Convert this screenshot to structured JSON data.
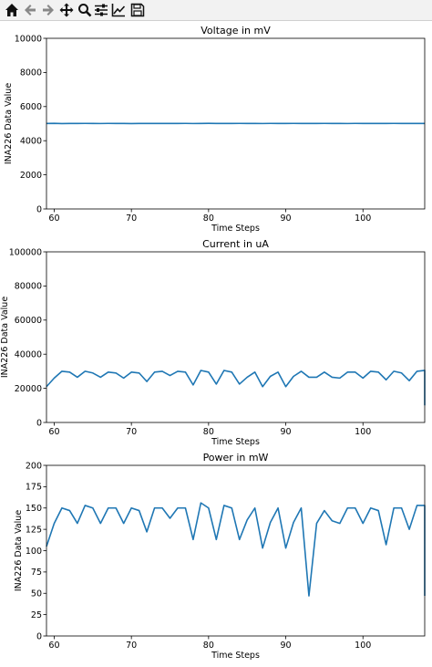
{
  "toolbar": {
    "tools": [
      "home-icon",
      "back-icon",
      "forward-icon",
      "pan-icon",
      "zoom-icon",
      "configure-subplots-icon",
      "edit-axis-icon",
      "save-icon"
    ]
  },
  "colors": {
    "line": "#1f77b4",
    "axis": "#000000",
    "background": "#ffffff"
  },
  "chart_data": [
    {
      "type": "line",
      "title": "Voltage in mV",
      "xlabel": "Time Steps",
      "ylabel": "INA226 Data Value",
      "xlim": [
        59,
        108
      ],
      "ylim": [
        0,
        10000
      ],
      "xticks": [
        60,
        70,
        80,
        90,
        100
      ],
      "yticks": [
        0,
        2000,
        4000,
        6000,
        8000,
        10000
      ],
      "grid": false,
      "legend": "none",
      "series": [
        {
          "x": [
            59,
            60,
            61,
            62,
            63,
            64,
            65,
            66,
            67,
            68,
            69,
            70,
            71,
            72,
            73,
            74,
            75,
            76,
            77,
            78,
            79,
            80,
            81,
            82,
            83,
            84,
            85,
            86,
            87,
            88,
            89,
            90,
            91,
            92,
            93,
            94,
            95,
            96,
            97,
            98,
            99,
            100,
            101,
            102,
            103,
            104,
            105,
            106,
            107,
            108
          ],
          "values": [
            5010,
            5015,
            5005,
            5012,
            5008,
            5014,
            5010,
            5007,
            5013,
            5009,
            5011,
            5006,
            5012,
            5010,
            5008,
            5014,
            5009,
            5011,
            5013,
            5007,
            5012,
            5015,
            5009,
            5011,
            5008,
            5013,
            5010,
            5012,
            5007,
            5014,
            5011,
            5009,
            5013,
            5010,
            5008,
            5012,
            5014,
            5009,
            5011,
            5007,
            5013,
            5010,
            5012,
            5008,
            5011,
            5014,
            5009,
            5012,
            5010,
            5008
          ]
        }
      ]
    },
    {
      "type": "line",
      "title": "Current in uA",
      "xlabel": "Time Steps",
      "ylabel": "INA226 Data Value",
      "xlim": [
        59,
        108
      ],
      "ylim": [
        0,
        100000
      ],
      "xticks": [
        60,
        70,
        80,
        90,
        100
      ],
      "yticks": [
        0,
        20000,
        40000,
        60000,
        80000,
        100000
      ],
      "grid": false,
      "legend": "none",
      "series": [
        {
          "x": [
            59,
            60,
            61,
            62,
            63,
            64,
            65,
            66,
            67,
            68,
            69,
            70,
            71,
            72,
            73,
            74,
            75,
            76,
            77,
            78,
            79,
            80,
            81,
            82,
            83,
            84,
            85,
            86,
            87,
            88,
            89,
            90,
            91,
            92,
            93,
            94,
            95,
            96,
            97,
            98,
            99,
            100,
            101,
            102,
            103,
            104,
            105,
            106,
            107,
            108,
            108
          ],
          "values": [
            21000,
            26000,
            30000,
            29500,
            26500,
            30000,
            29000,
            26500,
            29500,
            29000,
            26000,
            29500,
            29000,
            24000,
            29500,
            30000,
            27500,
            30000,
            29500,
            22000,
            30500,
            29500,
            22500,
            30500,
            29500,
            22500,
            26500,
            29500,
            21000,
            27000,
            29500,
            21000,
            27000,
            30000,
            26500,
            26500,
            29500,
            26500,
            26000,
            29500,
            29500,
            26000,
            30000,
            29500,
            25000,
            30000,
            29000,
            24500,
            30000,
            30500,
            10000
          ]
        }
      ]
    },
    {
      "type": "line",
      "title": "Power in mW",
      "xlabel": "Time Steps",
      "ylabel": "INA226 Data Value",
      "xlim": [
        59,
        108
      ],
      "ylim": [
        0,
        200
      ],
      "xticks": [
        60,
        70,
        80,
        90,
        100
      ],
      "yticks": [
        0,
        25,
        50,
        75,
        100,
        125,
        150,
        175,
        200
      ],
      "grid": false,
      "legend": "none",
      "series": [
        {
          "x": [
            59,
            60,
            61,
            62,
            63,
            64,
            65,
            66,
            67,
            68,
            69,
            70,
            71,
            72,
            73,
            74,
            75,
            76,
            77,
            78,
            79,
            80,
            81,
            82,
            83,
            84,
            85,
            86,
            87,
            88,
            89,
            90,
            91,
            92,
            93,
            94,
            95,
            96,
            97,
            98,
            99,
            100,
            101,
            102,
            103,
            104,
            105,
            106,
            107,
            108,
            108
          ],
          "values": [
            105,
            132,
            150,
            147,
            132,
            153,
            150,
            132,
            150,
            150,
            132,
            150,
            147,
            122,
            150,
            150,
            138,
            150,
            150,
            113,
            156,
            150,
            113,
            153,
            150,
            113,
            136,
            150,
            103,
            133,
            150,
            103,
            133,
            150,
            47,
            132,
            147,
            135,
            132,
            150,
            150,
            132,
            150,
            147,
            107,
            150,
            150,
            125,
            153,
            153,
            47
          ]
        }
      ]
    }
  ]
}
